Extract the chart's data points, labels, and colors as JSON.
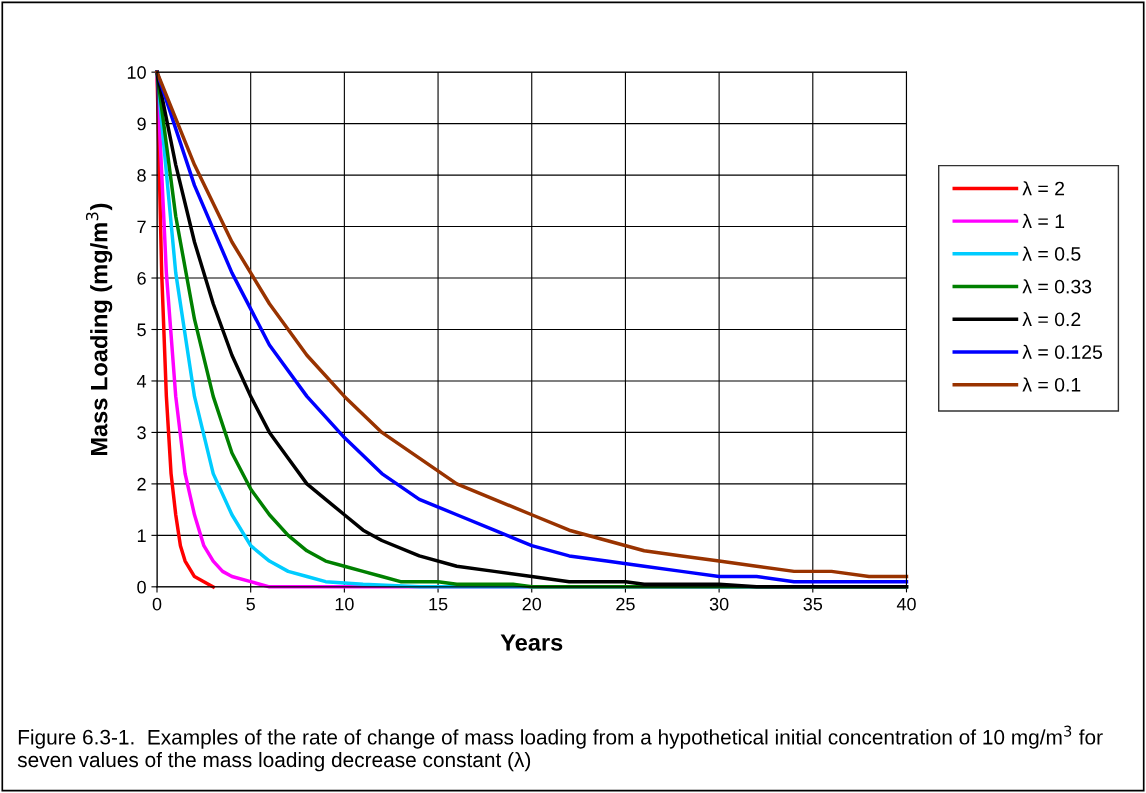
{
  "chart_data": {
    "type": "line",
    "xlabel": "Years",
    "ylabel": "Mass Loading (mg/m$^{3}$)",
    "xlim": [
      0,
      40
    ],
    "xticks": [
      0,
      5,
      10,
      15,
      20,
      25,
      30,
      35,
      40
    ],
    "ylim": [
      0,
      10
    ],
    "yticks": [
      0,
      1,
      2,
      3,
      4,
      5,
      6,
      7,
      8,
      9,
      10
    ],
    "grid": true,
    "legend": "right",
    "marker": "none",
    "line_style": "solid",
    "annotations": [
      "Figure 6.3-1.  Examples of the rate of change of mass loading from a hypothetical initial concentration of 10 mg/m$^{3}$ for seven values of the mass loading decrease constant (λ)"
    ],
    "series": [
      {
        "name": "λ = 2",
        "color": "#ff0000",
        "x": [
          0,
          0.25,
          0.5,
          0.75,
          1,
          1.25,
          1.5,
          2,
          2.5,
          3
        ],
        "values": [
          10,
          6.1,
          3.7,
          2.2,
          1.4,
          0.8,
          0.5,
          0.2,
          0.1,
          0
        ]
      },
      {
        "name": "λ = 1",
        "color": "#ff00ff",
        "x": [
          0,
          0.5,
          1,
          1.5,
          2,
          2.5,
          3,
          3.5,
          4,
          5,
          6,
          40
        ],
        "values": [
          10,
          6.1,
          3.7,
          2.2,
          1.4,
          0.8,
          0.5,
          0.3,
          0.2,
          0.1,
          0,
          0
        ]
      },
      {
        "name": "λ = 0.5",
        "color": "#00ccff",
        "x": [
          0,
          1,
          2,
          3,
          4,
          5,
          6,
          7,
          8,
          9,
          11,
          14,
          40
        ],
        "values": [
          10,
          6.1,
          3.7,
          2.2,
          1.4,
          0.8,
          0.5,
          0.3,
          0.2,
          0.1,
          0.05,
          0,
          0
        ]
      },
      {
        "name": "λ = 0.33",
        "color": "#008000",
        "x": [
          0,
          1,
          2,
          3,
          4,
          5,
          6,
          7,
          8,
          9,
          10,
          11,
          12,
          13,
          15,
          16,
          19,
          20,
          40
        ],
        "values": [
          10,
          7.2,
          5.2,
          3.7,
          2.6,
          1.9,
          1.4,
          1.0,
          0.7,
          0.5,
          0.4,
          0.3,
          0.2,
          0.1,
          0.1,
          0.05,
          0.05,
          0,
          0
        ]
      },
      {
        "name": "λ = 0.2",
        "color": "#000000",
        "x": [
          0,
          1,
          2,
          3,
          4,
          5,
          6,
          7,
          8,
          9,
          10,
          11,
          12,
          14,
          16,
          18,
          20,
          22,
          25,
          26,
          30,
          32,
          40
        ],
        "values": [
          10,
          8.2,
          6.7,
          5.5,
          4.5,
          3.7,
          3.0,
          2.5,
          2.0,
          1.7,
          1.4,
          1.1,
          0.9,
          0.6,
          0.4,
          0.3,
          0.2,
          0.1,
          0.1,
          0.05,
          0.05,
          0,
          0
        ]
      },
      {
        "name": "λ = 0.125",
        "color": "#0000ff",
        "x": [
          0,
          2,
          4,
          6,
          8,
          10,
          12,
          14,
          16,
          18,
          20,
          22,
          24,
          26,
          28,
          30,
          32,
          34,
          36,
          38,
          40
        ],
        "values": [
          10,
          7.8,
          6.1,
          4.7,
          3.7,
          2.9,
          2.2,
          1.7,
          1.4,
          1.1,
          0.8,
          0.6,
          0.5,
          0.4,
          0.3,
          0.2,
          0.2,
          0.1,
          0.1,
          0.1,
          0.1
        ]
      },
      {
        "name": "λ = 0.1",
        "color": "#993300",
        "x": [
          0,
          2,
          4,
          6,
          8,
          10,
          12,
          14,
          16,
          18,
          20,
          22,
          24,
          26,
          28,
          30,
          32,
          34,
          36,
          38,
          40
        ],
        "values": [
          10,
          8.2,
          6.7,
          5.5,
          4.5,
          3.7,
          3.0,
          2.5,
          2.0,
          1.7,
          1.4,
          1.1,
          0.9,
          0.7,
          0.6,
          0.5,
          0.4,
          0.3,
          0.3,
          0.2,
          0.2
        ]
      }
    ]
  }
}
